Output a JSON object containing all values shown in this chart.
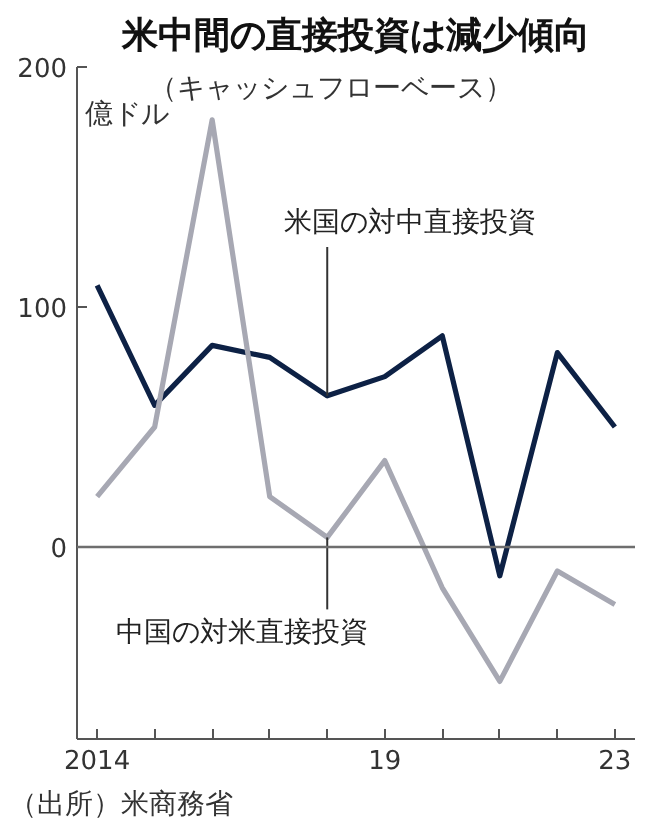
{
  "chart_data": {
    "type": "line",
    "title": "米中間の直接投資は減少傾向",
    "subtitle": "（キャッシュフローベース）",
    "ylabel": "億ドル",
    "x": [
      2014,
      2015,
      2016,
      2017,
      2018,
      2019,
      2020,
      2021,
      2022,
      2023
    ],
    "series": [
      {
        "color": "#0d2145",
        "values": [
          109,
          59,
          84,
          79,
          63,
          71,
          88,
          -12,
          81,
          50
        ]
      },
      {
        "color": "#a7a8b3",
        "values": [
          21,
          50,
          178,
          21,
          4,
          36,
          -17,
          -56,
          -10,
          -24
        ]
      }
    ],
    "annotations": [
      {
        "text": "米国の対中直接投資",
        "x": 2018,
        "y": 63
      },
      {
        "text": "中国の対米直接投資",
        "x": 2018,
        "y": 4
      },
      "（出所）米商務省"
    ],
    "xlim": [
      2013.65,
      2023.35
    ],
    "ylim": [
      -80,
      200
    ],
    "xticks": [
      {
        "value": 2014,
        "label": "2014"
      },
      {
        "value": 2015,
        "label": null
      },
      {
        "value": 2016,
        "label": null
      },
      {
        "value": 2017,
        "label": null
      },
      {
        "value": 2018,
        "label": null
      },
      {
        "value": 2019,
        "label": "19"
      },
      {
        "value": 2020,
        "label": null
      },
      {
        "value": 2021,
        "label": null
      },
      {
        "value": 2022,
        "label": null
      },
      {
        "value": 2023,
        "label": "23"
      }
    ],
    "yticks": [
      0,
      100,
      200
    ],
    "ref_lines": [
      {
        "axis": "y",
        "value": 0,
        "color": "#6e6e6e"
      }
    ],
    "grid": false,
    "marker": "none",
    "line_style": "solid"
  }
}
